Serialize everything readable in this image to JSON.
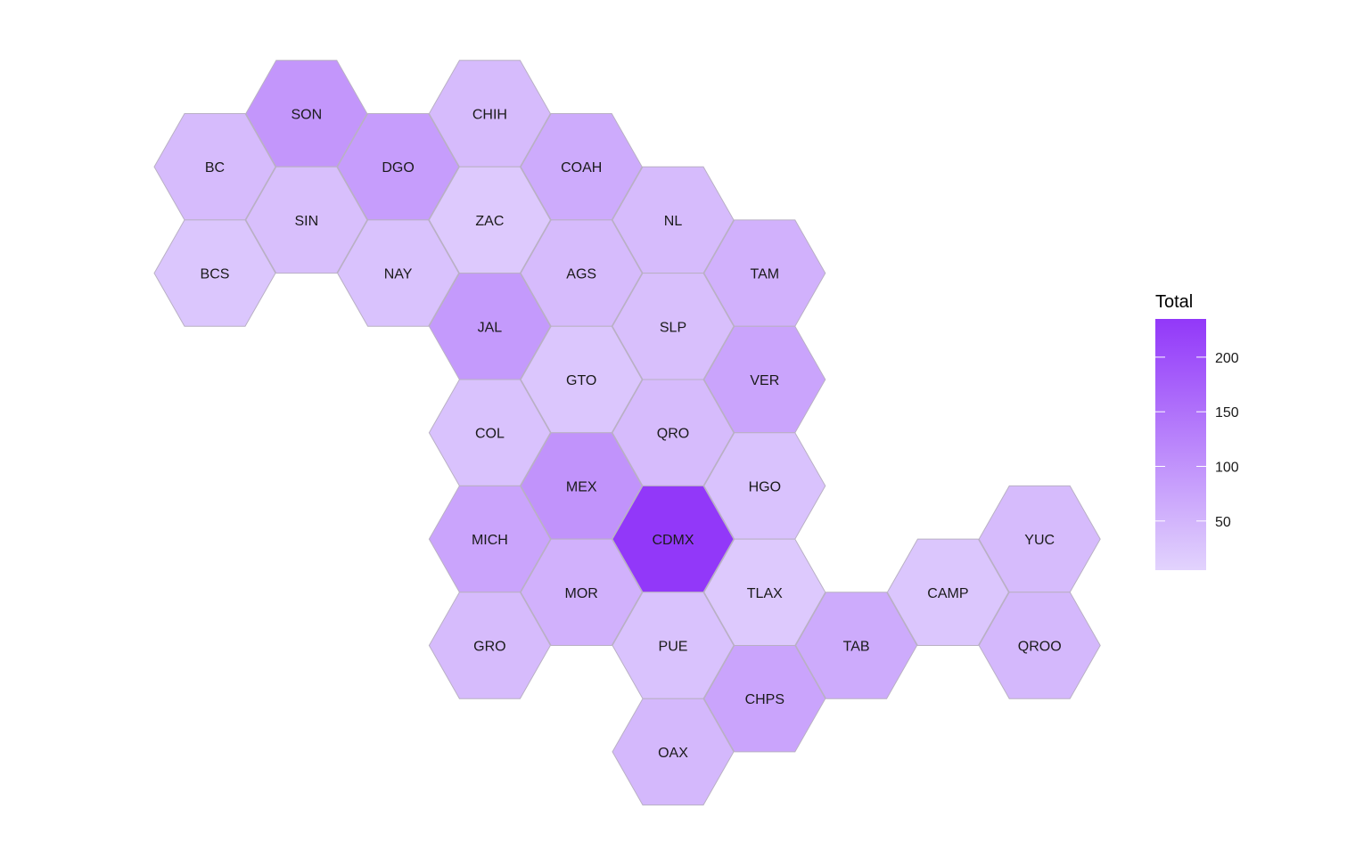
{
  "chart_data": {
    "type": "heatmap",
    "subtype": "hexagon tile map",
    "legend": {
      "title": "Total",
      "ticks": [
        50,
        100,
        150,
        200
      ],
      "range": [
        5,
        235
      ],
      "color_low": "#e2d3fd",
      "color_high": "#9238f9",
      "placement": "right"
    },
    "cells": [
      {
        "label": "SON",
        "col": 1,
        "row": 0,
        "value": 95
      },
      {
        "label": "CHIH",
        "col": 3,
        "row": 0,
        "value": 40
      },
      {
        "label": "BC",
        "col": 0,
        "row": 1,
        "value": 40
      },
      {
        "label": "DGO",
        "col": 2,
        "row": 1,
        "value": 85
      },
      {
        "label": "COAH",
        "col": 4,
        "row": 1,
        "value": 65
      },
      {
        "label": "SIN",
        "col": 1,
        "row": 2,
        "value": 35
      },
      {
        "label": "ZAC",
        "col": 3,
        "row": 2,
        "value": 20
      },
      {
        "label": "NL",
        "col": 5,
        "row": 2,
        "value": 40
      },
      {
        "label": "BCS",
        "col": 0,
        "row": 3,
        "value": 25
      },
      {
        "label": "NAY",
        "col": 2,
        "row": 3,
        "value": 30
      },
      {
        "label": "AGS",
        "col": 4,
        "row": 3,
        "value": 40
      },
      {
        "label": "TAM",
        "col": 6,
        "row": 3,
        "value": 55
      },
      {
        "label": "JAL",
        "col": 3,
        "row": 4,
        "value": 90
      },
      {
        "label": "SLP",
        "col": 5,
        "row": 4,
        "value": 35
      },
      {
        "label": "GTO",
        "col": 4,
        "row": 5,
        "value": 25
      },
      {
        "label": "VER",
        "col": 6,
        "row": 5,
        "value": 75
      },
      {
        "label": "COL",
        "col": 3,
        "row": 6,
        "value": 30
      },
      {
        "label": "QRO",
        "col": 5,
        "row": 6,
        "value": 40
      },
      {
        "label": "MEX",
        "col": 4,
        "row": 7,
        "value": 100
      },
      {
        "label": "HGO",
        "col": 6,
        "row": 7,
        "value": 30
      },
      {
        "label": "MICH",
        "col": 3,
        "row": 8,
        "value": 75
      },
      {
        "label": "CDMX",
        "col": 5,
        "row": 8,
        "value": 235
      },
      {
        "label": "YUC",
        "col": 9,
        "row": 8,
        "value": 40
      },
      {
        "label": "MOR",
        "col": 4,
        "row": 9,
        "value": 55
      },
      {
        "label": "TLAX",
        "col": 6,
        "row": 9,
        "value": 20
      },
      {
        "label": "CAMP",
        "col": 8,
        "row": 9,
        "value": 25
      },
      {
        "label": "GRO",
        "col": 3,
        "row": 10,
        "value": 40
      },
      {
        "label": "PUE",
        "col": 5,
        "row": 10,
        "value": 30
      },
      {
        "label": "TAB",
        "col": 7,
        "row": 10,
        "value": 65
      },
      {
        "label": "QROO",
        "col": 9,
        "row": 10,
        "value": 45
      },
      {
        "label": "CHPS",
        "col": 6,
        "row": 11,
        "value": 75
      },
      {
        "label": "OAX",
        "col": 5,
        "row": 12,
        "value": 45
      }
    ]
  }
}
